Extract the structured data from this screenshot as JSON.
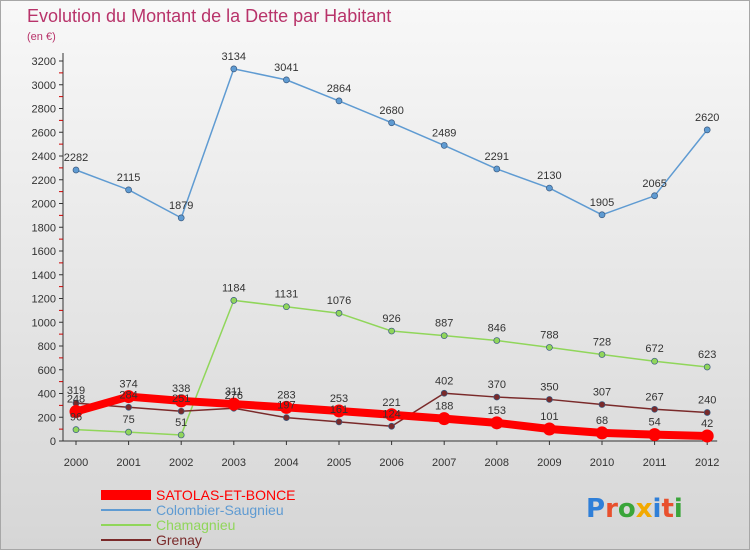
{
  "chart_data": {
    "type": "line",
    "title": "Evolution du Montant de la Dette par Habitant",
    "subtitle": "(en €)",
    "xlabel": "",
    "ylabel": "",
    "categories": [
      "2000",
      "2001",
      "2002",
      "2003",
      "2004",
      "2005",
      "2006",
      "2007",
      "2008",
      "2009",
      "2010",
      "2011",
      "2012"
    ],
    "ylim": [
      0,
      3200
    ],
    "yticks": [
      0,
      200,
      400,
      600,
      800,
      1000,
      1200,
      1400,
      1600,
      1800,
      2000,
      2200,
      2400,
      2600,
      2800,
      3000,
      3200
    ],
    "grid": false,
    "legend_position": "bottom-left",
    "series": [
      {
        "name": "SATOLAS-ET-BONCE",
        "color": "#ff0000",
        "values": [
          248,
          374,
          338,
          311,
          283,
          253,
          221,
          188,
          153,
          101,
          68,
          54,
          42
        ],
        "labels": [
          "248",
          "374",
          "338",
          "311",
          "283",
          "253",
          "221",
          "188",
          "153",
          "101",
          "68",
          "54",
          "42"
        ]
      },
      {
        "name": "Colombier-Saugnieu",
        "color": "#5f9bd2",
        "values": [
          2282,
          2115,
          1879,
          3134,
          3041,
          2864,
          2680,
          2489,
          2291,
          2130,
          1905,
          2065,
          2620
        ],
        "labels": [
          "2282",
          "2115",
          "1879",
          "3134",
          "3041",
          "2864",
          "2680",
          "2489",
          "2291",
          "2130",
          "1905",
          "2065",
          "2620"
        ]
      },
      {
        "name": "Chamagnieu",
        "color": "#90d65a",
        "values": [
          96,
          75,
          51,
          1184,
          1131,
          1076,
          926,
          887,
          846,
          788,
          728,
          672,
          623
        ],
        "labels": [
          "96",
          "75",
          "51",
          "1184",
          "1131",
          "1076",
          "926",
          "887",
          "846",
          "788",
          "728",
          "672",
          "623"
        ]
      },
      {
        "name": "Grenay",
        "color": "#7a2a2a",
        "values": [
          319,
          284,
          251,
          276,
          197,
          161,
          124,
          402,
          370,
          350,
          307,
          267,
          240
        ],
        "labels": [
          "319",
          "284",
          "251",
          "276",
          "197",
          "161",
          "124",
          "402",
          "370",
          "350",
          "307",
          "267",
          "240"
        ]
      }
    ]
  },
  "logo": {
    "text": "Proxiti",
    "letter_colors": [
      "#2f7fd8",
      "#e8502d",
      "#3aa53a",
      "#f2a900",
      "#2f7fd8",
      "#e8502d",
      "#3aa53a"
    ]
  }
}
